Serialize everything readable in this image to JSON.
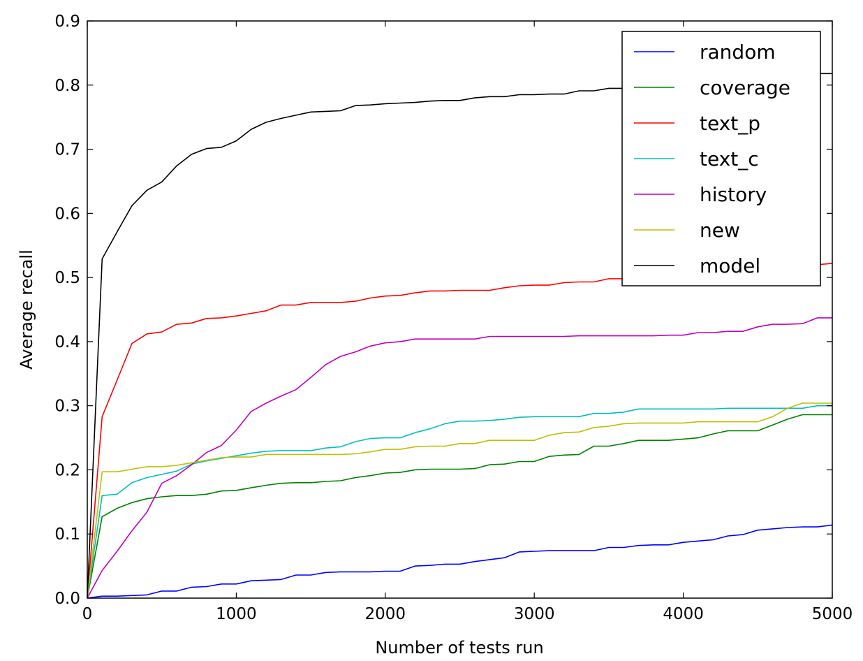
{
  "chart_data": {
    "type": "line",
    "title": "",
    "xlabel": "Number of tests run",
    "ylabel": "Average recall",
    "xlim": [
      0,
      5000
    ],
    "ylim": [
      0.0,
      0.9
    ],
    "xticks": [
      0,
      1000,
      2000,
      3000,
      4000,
      5000
    ],
    "xtick_labels": [
      "0",
      "1000",
      "2000",
      "3000",
      "4000",
      "5000"
    ],
    "yticks": [
      0.0,
      0.1,
      0.2,
      0.3,
      0.4,
      0.5,
      0.6,
      0.7,
      0.8,
      0.9
    ],
    "ytick_labels": [
      "0.0",
      "0.1",
      "0.2",
      "0.3",
      "0.4",
      "0.5",
      "0.6",
      "0.7",
      "0.8",
      "0.9"
    ],
    "grid": false,
    "legend_position": "top-right",
    "x": [
      0,
      100,
      200,
      300,
      400,
      500,
      600,
      700,
      800,
      900,
      1000,
      1100,
      1200,
      1300,
      1400,
      1500,
      1600,
      1700,
      1800,
      1900,
      2000,
      2100,
      2200,
      2300,
      2400,
      2500,
      2600,
      2700,
      2800,
      2900,
      3000,
      3100,
      3200,
      3300,
      3400,
      3500,
      3600,
      3700,
      3800,
      3900,
      4000,
      4100,
      4200,
      4300,
      4400,
      4500,
      4600,
      4700,
      4800,
      4900,
      5000
    ],
    "series": [
      {
        "name": "random",
        "color": "#0000ff",
        "values": [
          0.0,
          0.003,
          0.003,
          0.004,
          0.005,
          0.011,
          0.011,
          0.017,
          0.018,
          0.022,
          0.022,
          0.027,
          0.028,
          0.029,
          0.036,
          0.036,
          0.04,
          0.041,
          0.041,
          0.041,
          0.042,
          0.042,
          0.05,
          0.051,
          0.053,
          0.053,
          0.057,
          0.06,
          0.063,
          0.072,
          0.073,
          0.074,
          0.074,
          0.074,
          0.074,
          0.079,
          0.079,
          0.082,
          0.083,
          0.083,
          0.087,
          0.089,
          0.091,
          0.097,
          0.099,
          0.106,
          0.108,
          0.11,
          0.111,
          0.111,
          0.114
        ]
      },
      {
        "name": "coverage",
        "color": "#008000",
        "values": [
          0.0,
          0.127,
          0.14,
          0.149,
          0.155,
          0.158,
          0.16,
          0.16,
          0.162,
          0.167,
          0.168,
          0.172,
          0.176,
          0.179,
          0.18,
          0.18,
          0.182,
          0.183,
          0.188,
          0.191,
          0.195,
          0.196,
          0.2,
          0.201,
          0.201,
          0.201,
          0.202,
          0.208,
          0.209,
          0.213,
          0.213,
          0.221,
          0.223,
          0.224,
          0.237,
          0.237,
          0.241,
          0.246,
          0.246,
          0.246,
          0.248,
          0.25,
          0.256,
          0.261,
          0.261,
          0.261,
          0.27,
          0.279,
          0.286,
          0.286,
          0.286
        ]
      },
      {
        "name": "text_p",
        "color": "#ff0000",
        "values": [
          0.0,
          0.283,
          0.34,
          0.397,
          0.412,
          0.415,
          0.427,
          0.429,
          0.436,
          0.437,
          0.44,
          0.444,
          0.448,
          0.457,
          0.457,
          0.461,
          0.461,
          0.461,
          0.463,
          0.468,
          0.471,
          0.472,
          0.476,
          0.479,
          0.479,
          0.48,
          0.48,
          0.48,
          0.484,
          0.487,
          0.488,
          0.488,
          0.492,
          0.493,
          0.493,
          0.498,
          0.498,
          0.5,
          0.503,
          0.505,
          0.507,
          0.509,
          0.51,
          0.511,
          0.512,
          0.514,
          0.516,
          0.518,
          0.519,
          0.52,
          0.522
        ]
      },
      {
        "name": "text_c",
        "color": "#00bfbf",
        "values": [
          0.0,
          0.16,
          0.162,
          0.18,
          0.188,
          0.193,
          0.198,
          0.209,
          0.214,
          0.218,
          0.222,
          0.226,
          0.229,
          0.23,
          0.23,
          0.23,
          0.234,
          0.236,
          0.244,
          0.249,
          0.25,
          0.25,
          0.258,
          0.264,
          0.272,
          0.276,
          0.276,
          0.277,
          0.279,
          0.282,
          0.283,
          0.283,
          0.283,
          0.283,
          0.288,
          0.288,
          0.29,
          0.295,
          0.295,
          0.295,
          0.295,
          0.295,
          0.295,
          0.296,
          0.296,
          0.296,
          0.296,
          0.296,
          0.296,
          0.3,
          0.3
        ]
      },
      {
        "name": "history",
        "color": "#bf00bf",
        "values": [
          0.0,
          0.043,
          0.073,
          0.105,
          0.134,
          0.179,
          0.191,
          0.208,
          0.227,
          0.238,
          0.262,
          0.291,
          0.304,
          0.315,
          0.325,
          0.344,
          0.364,
          0.377,
          0.384,
          0.393,
          0.398,
          0.4,
          0.404,
          0.404,
          0.404,
          0.404,
          0.404,
          0.408,
          0.408,
          0.408,
          0.408,
          0.408,
          0.408,
          0.409,
          0.409,
          0.409,
          0.409,
          0.409,
          0.409,
          0.41,
          0.41,
          0.414,
          0.414,
          0.416,
          0.416,
          0.423,
          0.427,
          0.427,
          0.428,
          0.437,
          0.437
        ]
      },
      {
        "name": "new",
        "color": "#bfbf00",
        "values": [
          0.0,
          0.197,
          0.197,
          0.201,
          0.205,
          0.205,
          0.207,
          0.211,
          0.215,
          0.219,
          0.22,
          0.22,
          0.224,
          0.224,
          0.224,
          0.224,
          0.224,
          0.224,
          0.225,
          0.228,
          0.232,
          0.232,
          0.236,
          0.237,
          0.237,
          0.241,
          0.241,
          0.246,
          0.246,
          0.246,
          0.246,
          0.254,
          0.258,
          0.259,
          0.266,
          0.268,
          0.272,
          0.273,
          0.273,
          0.273,
          0.273,
          0.275,
          0.275,
          0.275,
          0.275,
          0.275,
          0.283,
          0.296,
          0.304,
          0.304,
          0.304
        ]
      },
      {
        "name": "model",
        "color": "#000000",
        "values": [
          0.0,
          0.529,
          0.571,
          0.612,
          0.636,
          0.649,
          0.674,
          0.692,
          0.701,
          0.703,
          0.713,
          0.731,
          0.742,
          0.748,
          0.753,
          0.758,
          0.759,
          0.76,
          0.768,
          0.769,
          0.771,
          0.772,
          0.773,
          0.775,
          0.776,
          0.776,
          0.78,
          0.782,
          0.782,
          0.785,
          0.785,
          0.786,
          0.786,
          0.791,
          0.791,
          0.795,
          0.795,
          0.797,
          0.8,
          0.803,
          0.806,
          0.808,
          0.81,
          0.812,
          0.814,
          0.815,
          0.816,
          0.817,
          0.817,
          0.818,
          0.818
        ]
      }
    ]
  }
}
